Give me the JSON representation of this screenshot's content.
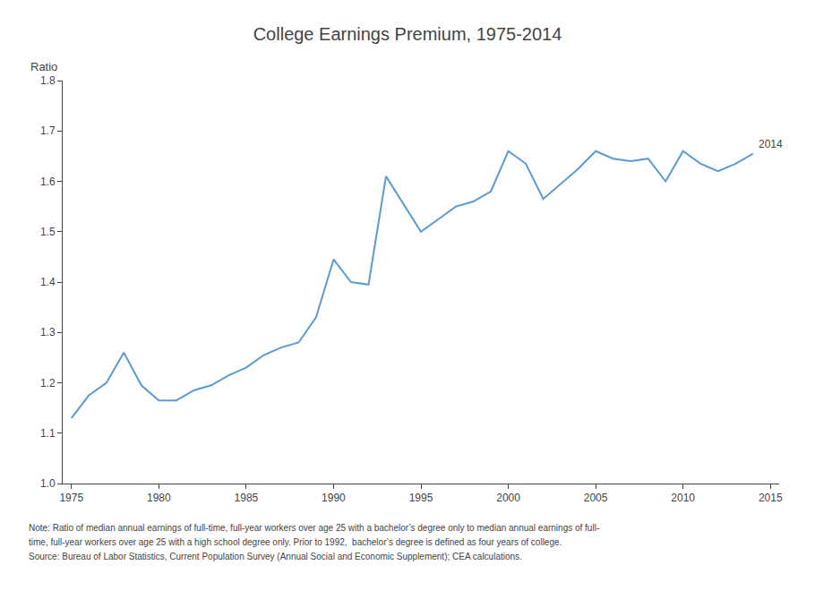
{
  "chart_data": {
    "type": "line",
    "title": "College Earnings Premium, 1975-2014",
    "ylabel": "Ratio",
    "x": [
      1975,
      1976,
      1977,
      1978,
      1979,
      1980,
      1981,
      1982,
      1983,
      1984,
      1985,
      1986,
      1987,
      1988,
      1989,
      1990,
      1991,
      1992,
      1993,
      1994,
      1995,
      1996,
      1997,
      1998,
      1999,
      2000,
      2001,
      2002,
      2003,
      2004,
      2005,
      2006,
      2007,
      2008,
      2009,
      2010,
      2011,
      2012,
      2013,
      2014
    ],
    "values": [
      1.13,
      1.175,
      1.2,
      1.26,
      1.195,
      1.165,
      1.165,
      1.185,
      1.195,
      1.215,
      1.23,
      1.255,
      1.27,
      1.28,
      1.33,
      1.445,
      1.4,
      1.395,
      1.61,
      1.555,
      1.5,
      1.525,
      1.55,
      1.56,
      1.58,
      1.66,
      1.635,
      1.565,
      1.595,
      1.625,
      1.66,
      1.645,
      1.64,
      1.645,
      1.6,
      1.66,
      1.635,
      1.62,
      1.635,
      1.655
    ],
    "color": "#5B9BD5",
    "xlim": [
      1974.5,
      2015.5
    ],
    "xticks": [
      1975,
      1980,
      1985,
      1990,
      1995,
      2000,
      2005,
      2010,
      2015
    ],
    "ylim": [
      1.0,
      1.8
    ],
    "yticks": [
      {
        "value": 1.0,
        "label": "1.0"
      },
      1.1,
      1.2,
      1.3,
      1.4,
      1.5,
      1.6,
      1.7,
      1.8
    ],
    "grid": false,
    "annotations": [
      {
        "text": "2014",
        "x": 2014,
        "y": 1.655
      }
    ],
    "notes": [
      "Note: Ratio of median annual earnings of full-time, full-year workers over age 25 with a bachelor’s degree only to median annual earnings of full-",
      "time, full-year workers over age 25 with a high school degree only. Prior to 1992,  bachelor’s degree is defined as four years of college.",
      "Source: Bureau of Labor Statistics, Current Population Survey (Annual Social and Economic Supplement); CEA calculations."
    ]
  }
}
